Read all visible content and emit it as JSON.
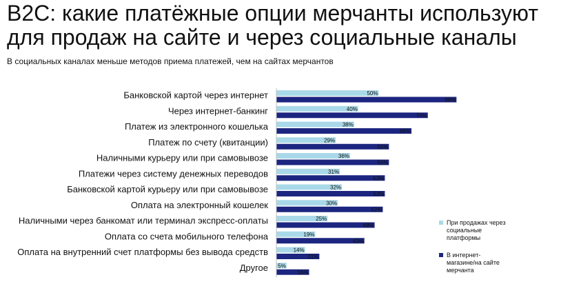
{
  "header": {
    "title_line1": "B2C: какие платёжные опции мерчанты используют",
    "title_line2": "для продаж на сайте и через социальные каналы",
    "subtitle": "В социальных каналах меньше методов приема платежей, чем на сайтах мерчантов"
  },
  "colors": {
    "social": "#a9d9e8",
    "site": "#1c2680"
  },
  "chart_data": {
    "type": "bar",
    "orientation": "horizontal",
    "title": "B2C: какие платёжные опции мерчанты используют для продаж на сайте и через социальные каналы",
    "subtitle": "В социальных каналах меньше методов приема платежей, чем на сайтах мерчантов",
    "categories": [
      "Банковской картой через интернет",
      "Через интернет-банкинг",
      "Платеж из электронного кошелька",
      "Платеж по счету (квитанции)",
      "Наличными курьеру или при самовывозе",
      "Платежи через систему денежных переводов",
      "Банковской картой курьеру или при самовывозе",
      "Оплата на электронный кошелек",
      "Наличными через банкомат или терминал экспресс-оплаты",
      "Оплата со счета мобильного телефона",
      "Оплата на внутренний счет платформы без вывода средств",
      "Другое"
    ],
    "series": [
      {
        "name": "При продажах через социальные платформы",
        "values": [
          50,
          40,
          38,
          29,
          36,
          31,
          32,
          30,
          25,
          19,
          14,
          5
        ]
      },
      {
        "name": "В интернет-магазине/на сайте мерчанта",
        "values": [
          88,
          74,
          66,
          55,
          55,
          53,
          53,
          52,
          48,
          43,
          21,
          16
        ]
      }
    ],
    "value_suffix": "%",
    "xlim": [
      0,
      100
    ],
    "legend_position": "right"
  },
  "legend": {
    "social_line1": "При продажах через",
    "social_line2": "социальные",
    "social_line3": "платформы",
    "site_line1": "В интернет-",
    "site_line2": "магазине/на сайте",
    "site_line3": "мерчанта"
  }
}
